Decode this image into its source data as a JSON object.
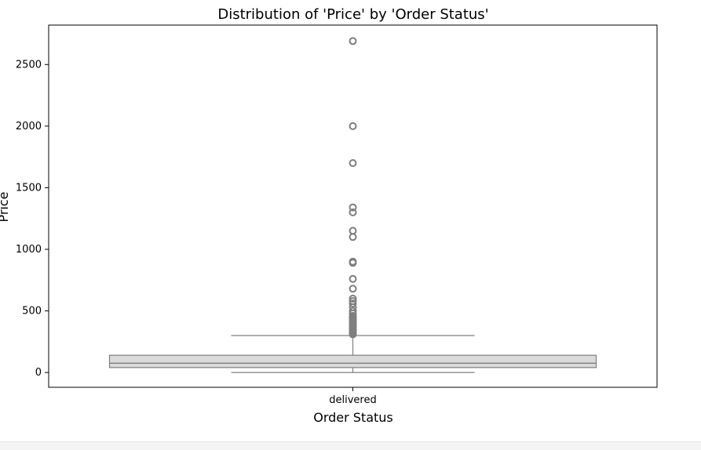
{
  "chart_data": {
    "type": "box",
    "title": "Distribution of 'Price' by 'Order Status'",
    "xlabel": "Order Status",
    "ylabel": "Price",
    "categories": [
      "delivered"
    ],
    "yticks": [
      0,
      500,
      1000,
      1500,
      2000,
      2500
    ],
    "ylim": [
      -120,
      2820
    ],
    "grid": false,
    "colors": {
      "box_fill": "#dadada",
      "box_edge": "#7f7f7f",
      "axis": "#000000"
    },
    "boxes": [
      {
        "category": "delivered",
        "q1": 40,
        "median": 75,
        "q3": 140,
        "whisker_low": 0,
        "whisker_high": 300,
        "outliers": [
          310,
          320,
          330,
          340,
          350,
          360,
          370,
          380,
          390,
          400,
          410,
          420,
          430,
          440,
          450,
          460,
          480,
          500,
          530,
          560,
          580,
          600,
          680,
          760,
          890,
          900,
          1100,
          1150,
          1300,
          1340,
          1700,
          2000,
          2690
        ]
      }
    ]
  }
}
